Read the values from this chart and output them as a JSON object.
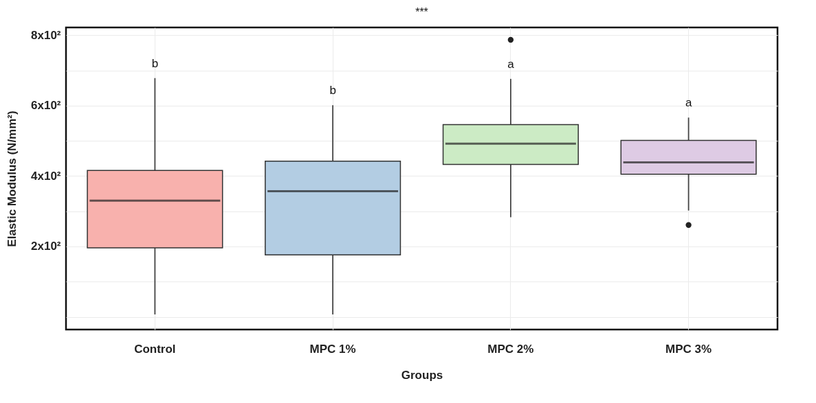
{
  "chart_data": {
    "type": "box",
    "title": "***",
    "xlabel": "Groups",
    "ylabel": "Elastic Modulus (N/mm²)",
    "categories": [
      "Control",
      "MPC 1%",
      "MPC 2%",
      "MPC 3%"
    ],
    "colors": [
      "#f8b1ad",
      "#b3cde3",
      "#ccebc5",
      "#decbe4"
    ],
    "boxes": [
      {
        "low": 7,
        "q1": 196,
        "median": 330,
        "q3": 416,
        "high": 678
      },
      {
        "low": 7,
        "q1": 176,
        "median": 357,
        "q3": 442,
        "high": 601
      },
      {
        "low": 283,
        "q1": 433,
        "median": 492,
        "q3": 546,
        "high": 676,
        "outliers": [
          787
        ]
      },
      {
        "low": 302,
        "q1": 405,
        "median": 439,
        "q3": 501,
        "high": 566,
        "outliers": [
          261
        ]
      }
    ],
    "ylim": [
      -36,
      822
    ],
    "yticks": [
      {
        "value": 0,
        "label": null
      },
      {
        "value": 100,
        "label": null
      },
      {
        "value": 200,
        "label": "2x10²"
      },
      {
        "value": 300,
        "label": null
      },
      {
        "value": 400,
        "label": "4x10²"
      },
      {
        "value": 500,
        "label": null
      },
      {
        "value": 600,
        "label": "6x10²"
      },
      {
        "value": 700,
        "label": null
      },
      {
        "value": 800,
        "label": "8x10²"
      }
    ],
    "annotations": [
      "b",
      "b",
      "a",
      "a"
    ],
    "grid": true
  }
}
